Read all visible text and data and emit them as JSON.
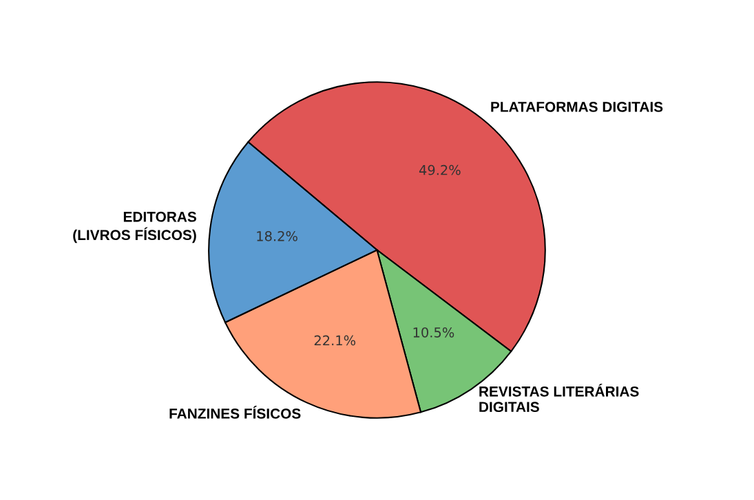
{
  "chart_data": {
    "type": "pie",
    "categories": [
      "PLATAFORMAS DIGITAIS",
      "REVISTAS LITERÁRIAS\nDIGITAIS",
      "FANZINES FÍSICOS",
      "EDITORAS\n(LIVROS FÍSICOS)"
    ],
    "values": [
      49.2,
      10.5,
      22.1,
      18.2
    ],
    "value_labels": [
      "49.2%",
      "10.5%",
      "22.1%",
      "18.2%"
    ],
    "colors": [
      "#e05555",
      "#77c476",
      "#ffa07a",
      "#5b9bd1"
    ]
  }
}
